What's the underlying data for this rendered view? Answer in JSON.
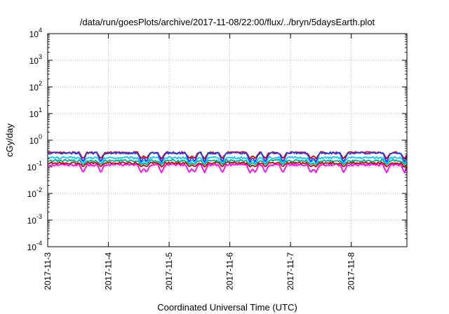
{
  "chart_data": {
    "type": "line",
    "title": "/data/run/goesPlots/archive/2017-11-08/22:00/flux/../bryn/5daysEarth.plot",
    "xlabel": "Coordinated Universal Time (UTC)",
    "ylabel": "cGy/day",
    "yscale": "log",
    "ylim": [
      0.0001,
      10000
    ],
    "xlim": [
      "2017-11-03",
      "2017-11-08T22:00"
    ],
    "x_ticks": [
      "2017-11-3",
      "2017-11-4",
      "2017-11-5",
      "2017-11-6",
      "2017-11-7",
      "2017-11-8"
    ],
    "y_ticks": [
      {
        "base": "10",
        "exp": "-4"
      },
      {
        "base": "10",
        "exp": "-3"
      },
      {
        "base": "10",
        "exp": "-2"
      },
      {
        "base": "10",
        "exp": "-1"
      },
      {
        "base": "10",
        "exp": "0"
      },
      {
        "base": "10",
        "exp": "1"
      },
      {
        "base": "10",
        "exp": "2"
      },
      {
        "base": "10",
        "exp": "3"
      },
      {
        "base": "10",
        "exp": "4"
      }
    ],
    "grid": true,
    "series": [
      {
        "color": "#ff00ff",
        "typical_value": 0.12,
        "dip_min": 0.06
      },
      {
        "color": "#cc0000",
        "typical_value": 0.14,
        "dip_min": 0.1
      },
      {
        "color": "#00aa88",
        "typical_value": 0.17,
        "dip_min": 0.12
      },
      {
        "color": "#00ccff",
        "typical_value": 0.22,
        "dip_min": 0.14
      },
      {
        "color": "#dd0000",
        "typical_value": 0.34,
        "dip_min": 0.2
      },
      {
        "color": "#1f3fff",
        "typical_value": 0.33,
        "dip_min": 0.15
      }
    ],
    "dip_times": [
      "2017-11-03T14:00",
      "2017-11-03T21:00",
      "2017-11-04T13:00",
      "2017-11-04T15:00",
      "2017-11-04T21:00",
      "2017-11-05T08:00",
      "2017-11-05T10:00",
      "2017-11-05T14:00",
      "2017-11-05T21:00",
      "2017-11-06T08:00",
      "2017-11-06T10:00",
      "2017-11-06T14:00",
      "2017-11-06T21:00",
      "2017-11-07T08:00",
      "2017-11-07T10:00",
      "2017-11-07T21:00",
      "2017-11-08T14:00",
      "2017-11-08T21:00"
    ]
  }
}
